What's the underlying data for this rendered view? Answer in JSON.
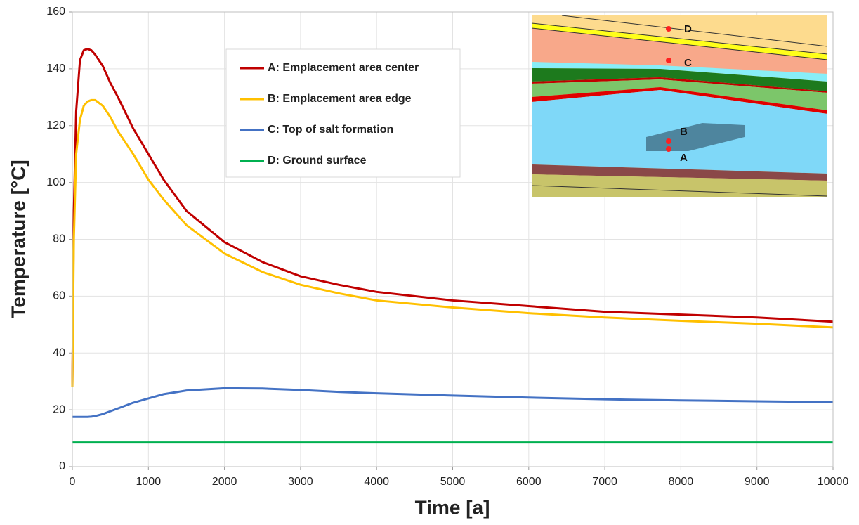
{
  "chart_data": {
    "type": "line",
    "xlabel": "Time [a]",
    "ylabel": "Temperature [°C]",
    "x": [
      0,
      20,
      50,
      100,
      150,
      200,
      250,
      300,
      400,
      500,
      600,
      800,
      1000,
      1200,
      1500,
      2000,
      2500,
      3000,
      3500,
      4000,
      5000,
      6000,
      7000,
      8000,
      9000,
      10000
    ],
    "series": [
      {
        "name": "A: Emplacement area center",
        "color": "#c00000",
        "values": [
          28,
          90,
          125,
          143,
          146.5,
          147,
          146.5,
          145,
          141,
          135,
          130,
          119,
          110,
          101,
          90,
          79,
          72,
          67,
          64,
          61.5,
          58.5,
          56.5,
          54.5,
          53.5,
          52.5,
          51
        ]
      },
      {
        "name": "B: Emplacement area edge",
        "color": "#ffc000",
        "values": [
          28,
          80,
          110,
          122,
          127,
          128.5,
          129,
          129,
          127,
          123,
          118,
          110,
          101,
          94,
          85,
          75,
          68.5,
          64,
          61,
          58.5,
          56,
          54,
          52.5,
          51.3,
          50.3,
          49
        ]
      },
      {
        "name": "C: Top of salt formation",
        "color": "#4472c4",
        "values": [
          17.5,
          17.5,
          17.5,
          17.5,
          17.5,
          17.5,
          17.6,
          17.8,
          18.5,
          19.5,
          20.5,
          22.5,
          24,
          25.5,
          26.8,
          27.6,
          27.5,
          27,
          26.3,
          25.8,
          25,
          24.3,
          23.7,
          23.3,
          23,
          22.7
        ]
      },
      {
        "name": "D: Ground surface",
        "color": "#00b050",
        "values": [
          8.5,
          8.5,
          8.5,
          8.5,
          8.5,
          8.5,
          8.5,
          8.5,
          8.5,
          8.5,
          8.5,
          8.5,
          8.5,
          8.5,
          8.5,
          8.5,
          8.5,
          8.5,
          8.5,
          8.5,
          8.5,
          8.5,
          8.5,
          8.5,
          8.5,
          8.5
        ]
      }
    ],
    "xlim": [
      0,
      10000
    ],
    "xticks": [
      0,
      1000,
      2000,
      3000,
      4000,
      5000,
      6000,
      7000,
      8000,
      9000,
      10000
    ],
    "ylim": [
      0,
      160
    ],
    "yticks": [
      0,
      20,
      40,
      60,
      80,
      100,
      120,
      140,
      160
    ],
    "grid": true,
    "inset_labels": [
      "D",
      "C",
      "B",
      "A"
    ]
  }
}
